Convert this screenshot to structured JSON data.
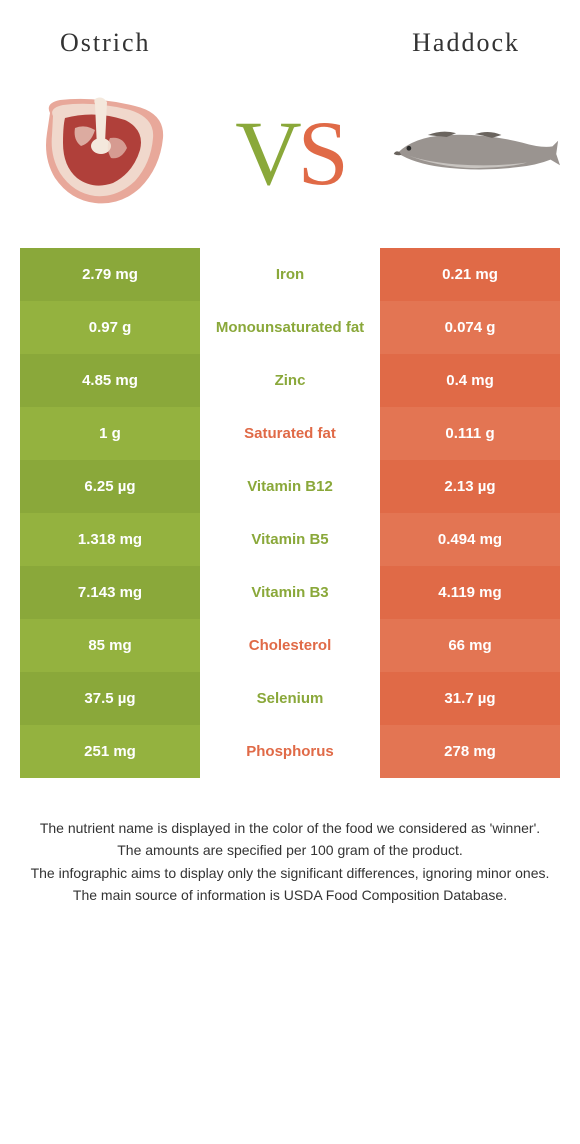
{
  "left_food": "Ostrich",
  "right_food": "Haddock",
  "vs_left_char": "V",
  "vs_right_char": "S",
  "colors": {
    "left": "#8aa83a",
    "left_alt": "#94b23f",
    "right": "#e06a47",
    "right_alt": "#e37553",
    "mid_bg": "#ffffff",
    "text_left": "#8aa83a",
    "text_right": "#e06a47"
  },
  "rows": [
    {
      "left": "2.79 mg",
      "label": "Iron",
      "right": "0.21 mg",
      "winner": "left"
    },
    {
      "left": "0.97 g",
      "label": "Monounsaturated fat",
      "right": "0.074 g",
      "winner": "left"
    },
    {
      "left": "4.85 mg",
      "label": "Zinc",
      "right": "0.4 mg",
      "winner": "left"
    },
    {
      "left": "1 g",
      "label": "Saturated fat",
      "right": "0.111 g",
      "winner": "right"
    },
    {
      "left": "6.25 µg",
      "label": "Vitamin B12",
      "right": "2.13 µg",
      "winner": "left"
    },
    {
      "left": "1.318 mg",
      "label": "Vitamin B5",
      "right": "0.494 mg",
      "winner": "left"
    },
    {
      "left": "7.143 mg",
      "label": "Vitamin B3",
      "right": "4.119 mg",
      "winner": "left"
    },
    {
      "left": "85 mg",
      "label": "Cholesterol",
      "right": "66 mg",
      "winner": "right"
    },
    {
      "left": "37.5 µg",
      "label": "Selenium",
      "right": "31.7 µg",
      "winner": "left"
    },
    {
      "left": "251 mg",
      "label": "Phosphorus",
      "right": "278 mg",
      "winner": "right"
    }
  ],
  "footnotes": [
    "The nutrient name is displayed in the color of the food we considered as 'winner'.",
    "The amounts are specified per 100 gram of the product.",
    "The infographic aims to display only the significant differences, ignoring minor ones.",
    "The main source of information is USDA Food Composition Database."
  ]
}
